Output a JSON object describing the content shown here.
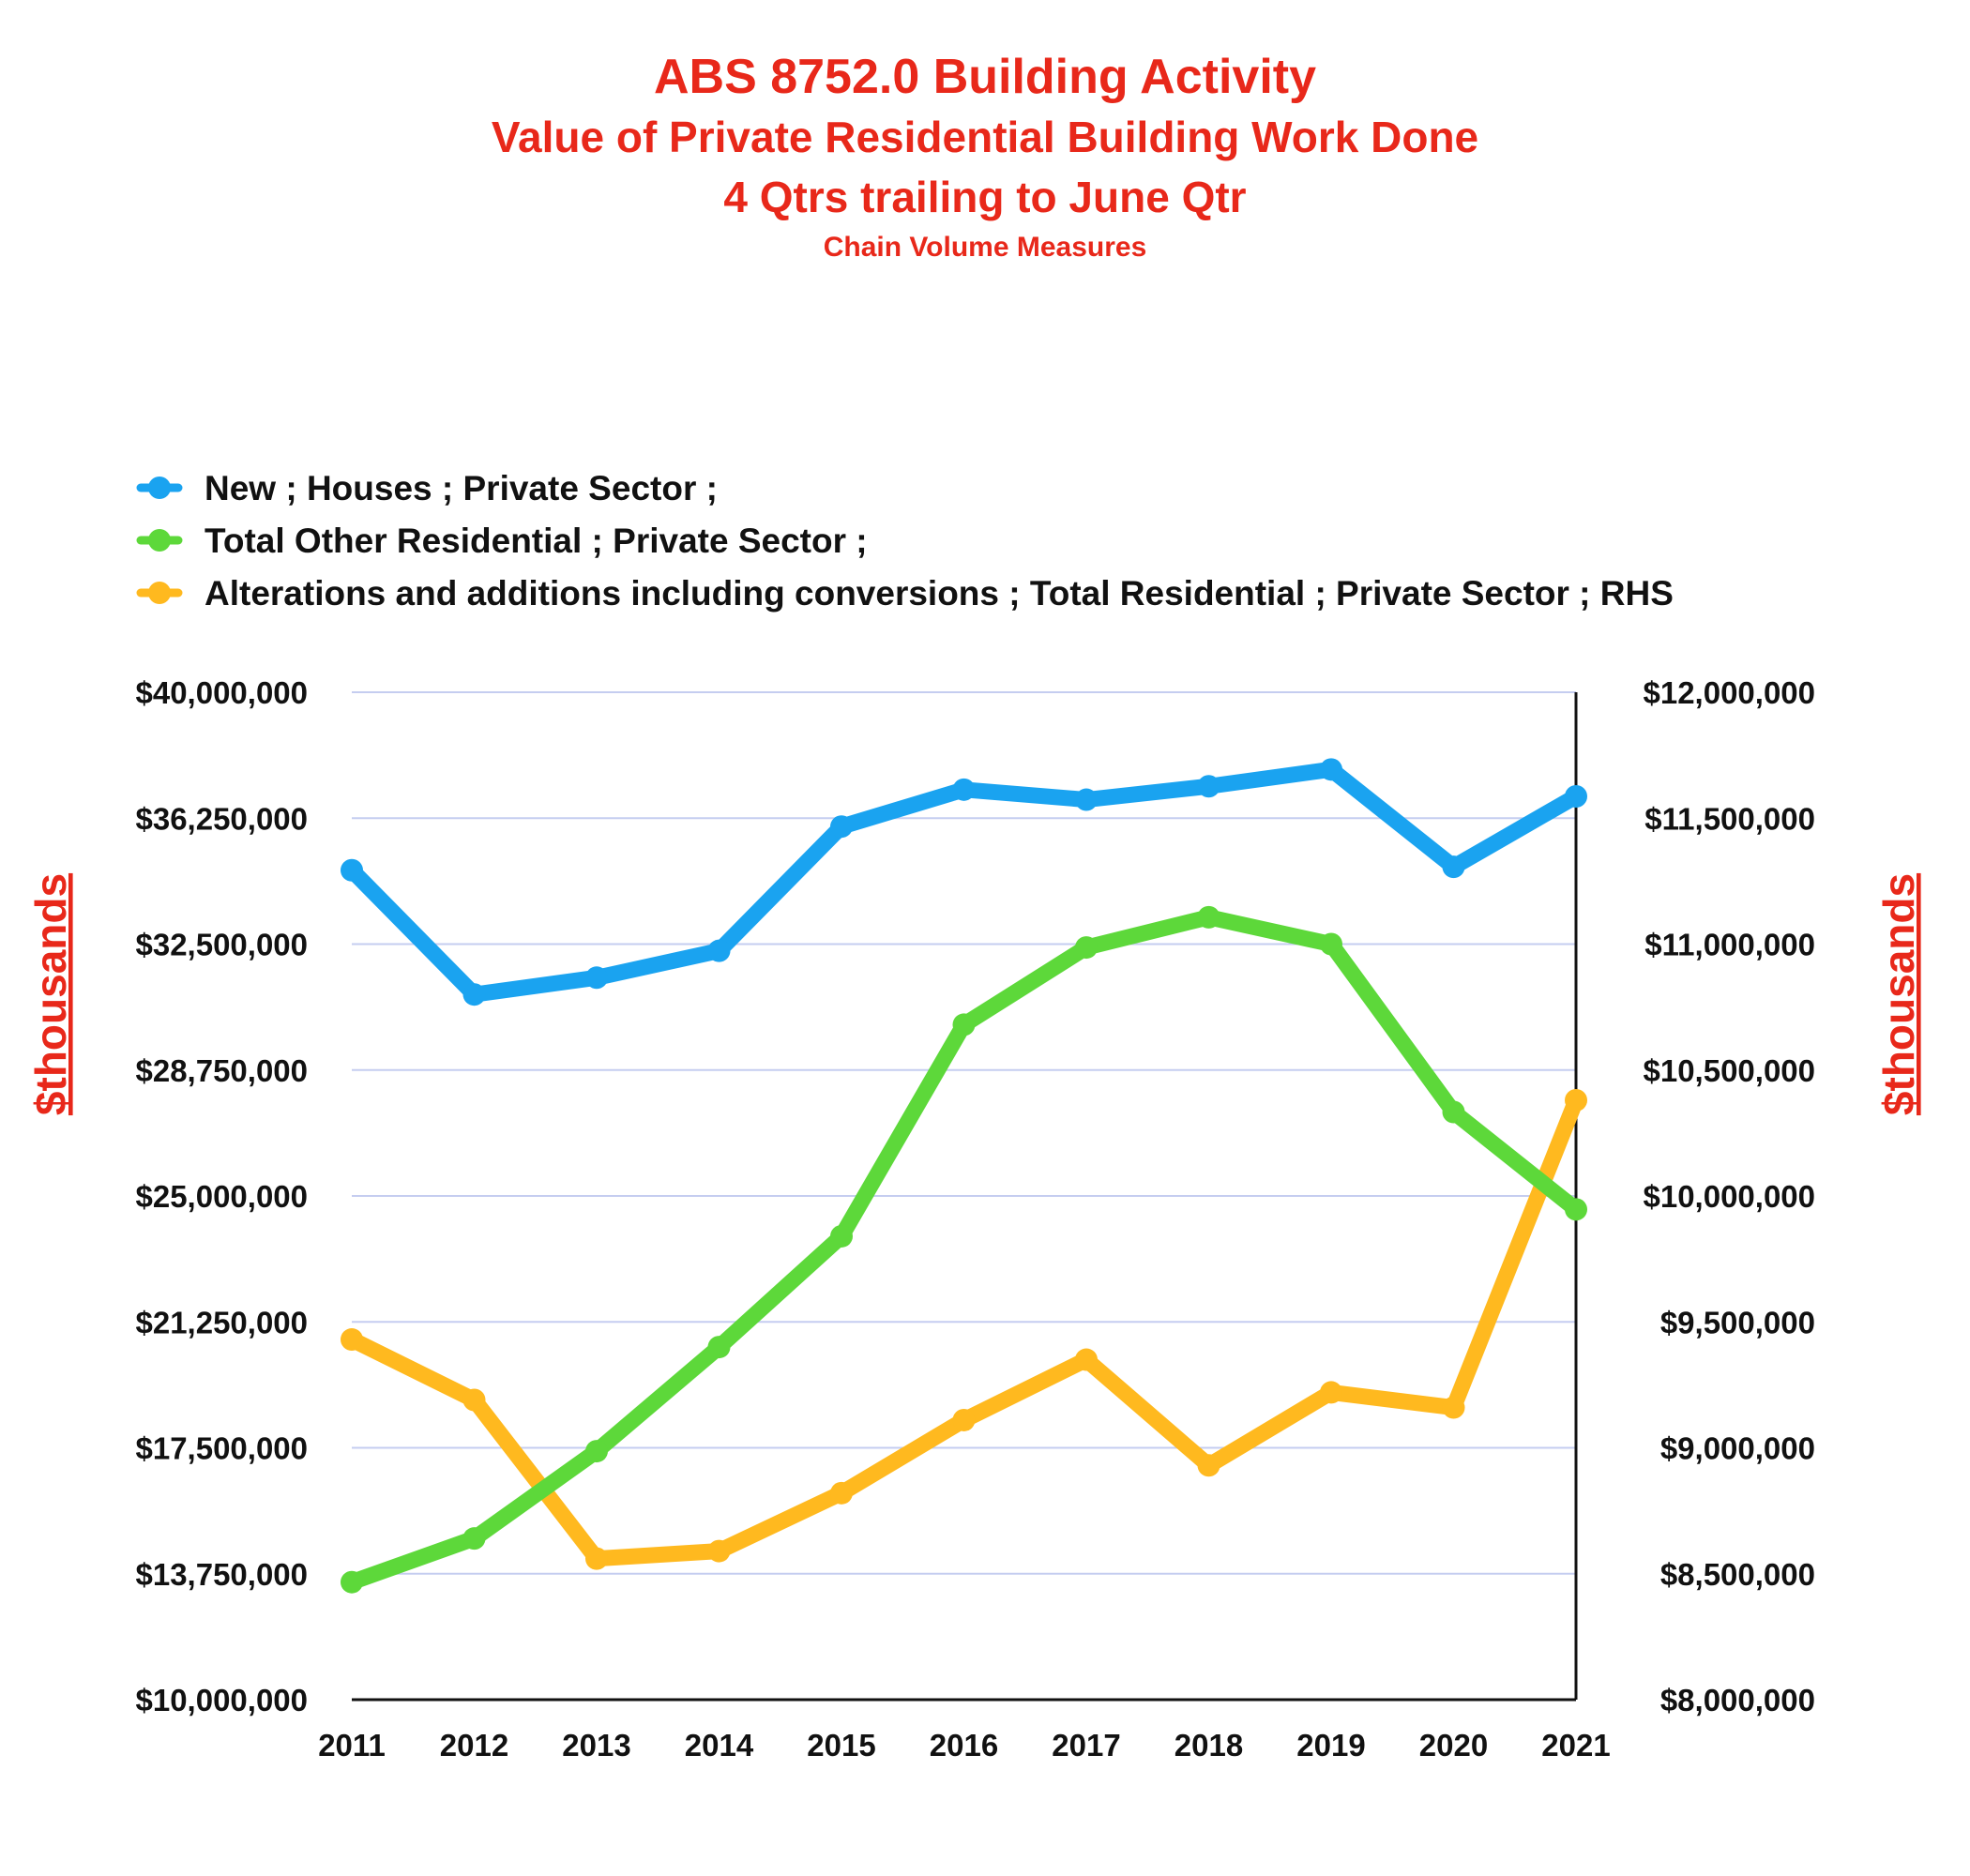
{
  "chart_data": {
    "type": "line",
    "title": "ABS 8752.0 Building Activity",
    "subtitle_lines": [
      "Value of Private Residential Building Work Done",
      "4 Qtrs trailing to June Qtr",
      "Chain Volume Measures"
    ],
    "ylabel_left": "$thousands",
    "ylabel_right": "$thousands",
    "categories": [
      "2011",
      "2012",
      "2013",
      "2014",
      "2015",
      "2016",
      "2017",
      "2018",
      "2019",
      "2020",
      "2021"
    ],
    "y_left": {
      "min": 10000000,
      "max": 40000000,
      "ticks": [
        "$10,000,000",
        "$13,750,000",
        "$17,500,000",
        "$21,250,000",
        "$25,000,000",
        "$28,750,000",
        "$32,500,000",
        "$36,250,000",
        "$40,000,000"
      ]
    },
    "y_right": {
      "min": 8000000,
      "max": 12000000,
      "ticks": [
        "$8,000,000",
        "$8,500,000",
        "$9,000,000",
        "$9,500,000",
        "$10,000,000",
        "$10,500,000",
        "$11,000,000",
        "$11,500,000",
        "$12,000,000"
      ]
    },
    "grid": true,
    "legend_position": "top-left",
    "series": [
      {
        "name": "New ;  Houses ;  Private Sector ;",
        "color": "#1aa3f0",
        "axis": "left",
        "values": [
          34700000,
          31000000,
          31500000,
          32300000,
          36000000,
          37100000,
          36800000,
          37200000,
          37700000,
          34800000,
          36900000
        ]
      },
      {
        "name": " Total Other Residential ;  Private Sector ;",
        "color": "#5dd83a",
        "axis": "left",
        "values": [
          13500000,
          14800000,
          17400000,
          20500000,
          23800000,
          30100000,
          32400000,
          33300000,
          32500000,
          27500000,
          24600000
        ]
      },
      {
        "name": "Alterations and additions including conversions ;  Total Residential ;  Private Sector ; RHS",
        "color": "#ffb91f",
        "axis": "right",
        "values": [
          9430000,
          9190000,
          8560000,
          8590000,
          8820000,
          9110000,
          9350000,
          8930000,
          9220000,
          9160000,
          10380000
        ]
      }
    ]
  }
}
